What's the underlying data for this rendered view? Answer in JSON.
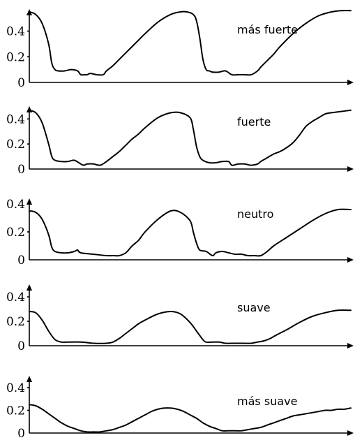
{
  "chart_data": [
    {
      "type": "line",
      "label": "más fuerte",
      "ylim": [
        0,
        0.55
      ],
      "yticks": [
        "0",
        "0.2",
        "0.4"
      ],
      "x": [
        0.0,
        0.02,
        0.04,
        0.06,
        0.07,
        0.08,
        0.09,
        0.11,
        0.13,
        0.15,
        0.16,
        0.17,
        0.18,
        0.19,
        0.21,
        0.23,
        0.24,
        0.26,
        0.28,
        0.3,
        0.32,
        0.34,
        0.36,
        0.4,
        0.44,
        0.47,
        0.49,
        0.51,
        0.52,
        0.53,
        0.54,
        0.55,
        0.56,
        0.57,
        0.59,
        0.61,
        0.63,
        0.65,
        0.66,
        0.67,
        0.69,
        0.71,
        0.72,
        0.74,
        0.76,
        0.78,
        0.82,
        0.86,
        0.9,
        0.94,
        0.97,
        1.0
      ],
      "y": [
        0.55,
        0.53,
        0.46,
        0.3,
        0.15,
        0.1,
        0.09,
        0.09,
        0.1,
        0.09,
        0.06,
        0.06,
        0.06,
        0.07,
        0.06,
        0.06,
        0.09,
        0.13,
        0.18,
        0.23,
        0.28,
        0.33,
        0.38,
        0.47,
        0.53,
        0.55,
        0.55,
        0.53,
        0.48,
        0.35,
        0.18,
        0.1,
        0.09,
        0.08,
        0.08,
        0.09,
        0.06,
        0.06,
        0.06,
        0.06,
        0.06,
        0.09,
        0.12,
        0.17,
        0.22,
        0.28,
        0.38,
        0.46,
        0.52,
        0.55,
        0.56,
        0.56
      ]
    },
    {
      "type": "line",
      "label": "fuerte",
      "ylim": [
        0,
        0.48
      ],
      "yticks": [
        "0",
        "0.2",
        "0.4"
      ],
      "x": [
        0.0,
        0.02,
        0.04,
        0.06,
        0.07,
        0.08,
        0.1,
        0.12,
        0.14,
        0.16,
        0.17,
        0.18,
        0.2,
        0.22,
        0.24,
        0.26,
        0.28,
        0.3,
        0.32,
        0.34,
        0.36,
        0.4,
        0.44,
        0.47,
        0.5,
        0.51,
        0.52,
        0.53,
        0.54,
        0.56,
        0.58,
        0.6,
        0.62,
        0.63,
        0.65,
        0.67,
        0.69,
        0.71,
        0.72,
        0.74,
        0.76,
        0.78,
        0.8,
        0.82,
        0.84,
        0.86,
        0.88,
        0.9,
        0.92,
        0.94,
        0.97,
        1.0
      ],
      "y": [
        0.47,
        0.45,
        0.37,
        0.2,
        0.1,
        0.07,
        0.06,
        0.06,
        0.07,
        0.04,
        0.03,
        0.04,
        0.04,
        0.03,
        0.06,
        0.1,
        0.14,
        0.19,
        0.24,
        0.28,
        0.33,
        0.41,
        0.45,
        0.45,
        0.41,
        0.32,
        0.18,
        0.1,
        0.07,
        0.05,
        0.05,
        0.06,
        0.06,
        0.03,
        0.04,
        0.04,
        0.03,
        0.04,
        0.06,
        0.09,
        0.12,
        0.14,
        0.17,
        0.21,
        0.27,
        0.34,
        0.38,
        0.41,
        0.44,
        0.45,
        0.46,
        0.47
      ]
    },
    {
      "type": "line",
      "label": "neutro",
      "ylim": [
        0,
        0.42
      ],
      "yticks": [
        "0",
        "0.2",
        "0.4"
      ],
      "x": [
        0.0,
        0.02,
        0.04,
        0.06,
        0.07,
        0.08,
        0.1,
        0.12,
        0.14,
        0.15,
        0.16,
        0.2,
        0.24,
        0.26,
        0.28,
        0.3,
        0.32,
        0.34,
        0.36,
        0.4,
        0.44,
        0.47,
        0.5,
        0.51,
        0.52,
        0.53,
        0.55,
        0.57,
        0.58,
        0.6,
        0.62,
        0.64,
        0.66,
        0.68,
        0.7,
        0.72,
        0.74,
        0.76,
        0.8,
        0.84,
        0.88,
        0.92,
        0.96,
        1.0
      ],
      "y": [
        0.35,
        0.34,
        0.29,
        0.18,
        0.09,
        0.06,
        0.05,
        0.05,
        0.06,
        0.07,
        0.05,
        0.04,
        0.03,
        0.03,
        0.03,
        0.05,
        0.1,
        0.14,
        0.2,
        0.29,
        0.35,
        0.34,
        0.28,
        0.2,
        0.12,
        0.07,
        0.06,
        0.03,
        0.05,
        0.06,
        0.05,
        0.04,
        0.04,
        0.03,
        0.03,
        0.03,
        0.06,
        0.1,
        0.16,
        0.22,
        0.28,
        0.33,
        0.36,
        0.36
      ]
    },
    {
      "type": "line",
      "label": "suave",
      "ylim": [
        0,
        0.48
      ],
      "yticks": [
        "0",
        "0.2",
        "0.4"
      ],
      "x": [
        0.0,
        0.02,
        0.04,
        0.06,
        0.08,
        0.1,
        0.12,
        0.16,
        0.2,
        0.24,
        0.26,
        0.28,
        0.3,
        0.32,
        0.34,
        0.36,
        0.4,
        0.44,
        0.47,
        0.5,
        0.52,
        0.54,
        0.55,
        0.57,
        0.59,
        0.61,
        0.63,
        0.65,
        0.67,
        0.69,
        0.71,
        0.73,
        0.75,
        0.77,
        0.8,
        0.84,
        0.88,
        0.92,
        0.96,
        1.0
      ],
      "y": [
        0.28,
        0.27,
        0.21,
        0.12,
        0.05,
        0.03,
        0.03,
        0.03,
        0.02,
        0.02,
        0.03,
        0.06,
        0.1,
        0.14,
        0.18,
        0.21,
        0.26,
        0.28,
        0.26,
        0.19,
        0.12,
        0.05,
        0.03,
        0.03,
        0.03,
        0.02,
        0.02,
        0.02,
        0.02,
        0.02,
        0.03,
        0.04,
        0.06,
        0.09,
        0.13,
        0.19,
        0.24,
        0.27,
        0.29,
        0.29
      ]
    },
    {
      "type": "line",
      "label": "más suave",
      "ylim": [
        0,
        0.48
      ],
      "yticks": [
        "0",
        "0.2",
        "0.4"
      ],
      "x": [
        0.0,
        0.02,
        0.04,
        0.06,
        0.08,
        0.1,
        0.12,
        0.14,
        0.16,
        0.18,
        0.2,
        0.22,
        0.24,
        0.26,
        0.28,
        0.3,
        0.32,
        0.34,
        0.36,
        0.38,
        0.4,
        0.42,
        0.44,
        0.46,
        0.48,
        0.5,
        0.52,
        0.54,
        0.56,
        0.58,
        0.6,
        0.62,
        0.64,
        0.66,
        0.68,
        0.7,
        0.72,
        0.74,
        0.76,
        0.78,
        0.8,
        0.82,
        0.84,
        0.86,
        0.88,
        0.9,
        0.92,
        0.94,
        0.96,
        0.98,
        1.0
      ],
      "y": [
        0.25,
        0.24,
        0.21,
        0.17,
        0.13,
        0.09,
        0.06,
        0.04,
        0.02,
        0.01,
        0.01,
        0.01,
        0.02,
        0.03,
        0.05,
        0.07,
        0.1,
        0.13,
        0.16,
        0.19,
        0.21,
        0.22,
        0.22,
        0.21,
        0.19,
        0.16,
        0.13,
        0.09,
        0.06,
        0.04,
        0.02,
        0.02,
        0.02,
        0.02,
        0.03,
        0.04,
        0.05,
        0.07,
        0.09,
        0.11,
        0.13,
        0.15,
        0.16,
        0.17,
        0.18,
        0.19,
        0.2,
        0.2,
        0.21,
        0.21,
        0.22
      ]
    }
  ]
}
